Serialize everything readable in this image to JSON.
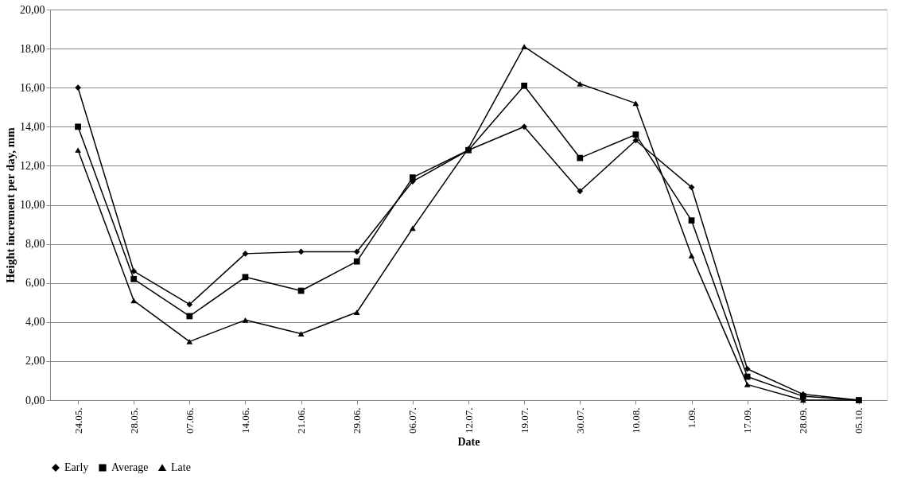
{
  "chart_data": {
    "type": "line",
    "xlabel": "Date",
    "ylabel": "Height increment per day, mm",
    "categories": [
      "24.05.",
      "28.05.",
      "07.06.",
      "14.06.",
      "21.06.",
      "29.06.",
      "06.07.",
      "12.07.",
      "19.07.",
      "30.07.",
      "10.08.",
      "1.09.",
      "17.09.",
      "28.09.",
      "05.10."
    ],
    "series": [
      {
        "name": "Early",
        "color": "#000000",
        "marker": "diamond",
        "values": [
          16.0,
          6.6,
          4.9,
          7.5,
          7.6,
          7.6,
          11.2,
          12.8,
          14.0,
          10.7,
          13.3,
          10.9,
          1.6,
          0.3,
          0.0
        ]
      },
      {
        "name": "Average",
        "color": "#000000",
        "marker": "square",
        "values": [
          14.0,
          6.2,
          4.3,
          6.3,
          5.6,
          7.1,
          11.4,
          12.8,
          16.1,
          12.4,
          13.6,
          9.2,
          1.2,
          0.2,
          0.0
        ]
      },
      {
        "name": "Late",
        "color": "#000000",
        "marker": "triangle",
        "values": [
          12.8,
          5.1,
          3.0,
          4.1,
          3.4,
          4.5,
          8.8,
          12.9,
          18.1,
          16.2,
          15.2,
          7.4,
          0.8,
          0.0,
          0.0
        ]
      }
    ],
    "ylim": [
      0,
      20
    ],
    "yticks": [
      {
        "value": 0,
        "label": "0,00"
      },
      {
        "value": 2,
        "label": "2,00"
      },
      {
        "value": 4,
        "label": "4,00"
      },
      {
        "value": 6,
        "label": "6,00"
      },
      {
        "value": 8,
        "label": "8,00"
      },
      {
        "value": 10,
        "label": "10,00"
      },
      {
        "value": 12,
        "label": "12,00"
      },
      {
        "value": 14,
        "label": "14,00"
      },
      {
        "value": 16,
        "label": "16,00"
      },
      {
        "value": 18,
        "label": "18,00"
      },
      {
        "value": 20,
        "label": "20,00"
      }
    ],
    "grid": "y",
    "legend": "bottom",
    "line_style": "solid"
  }
}
